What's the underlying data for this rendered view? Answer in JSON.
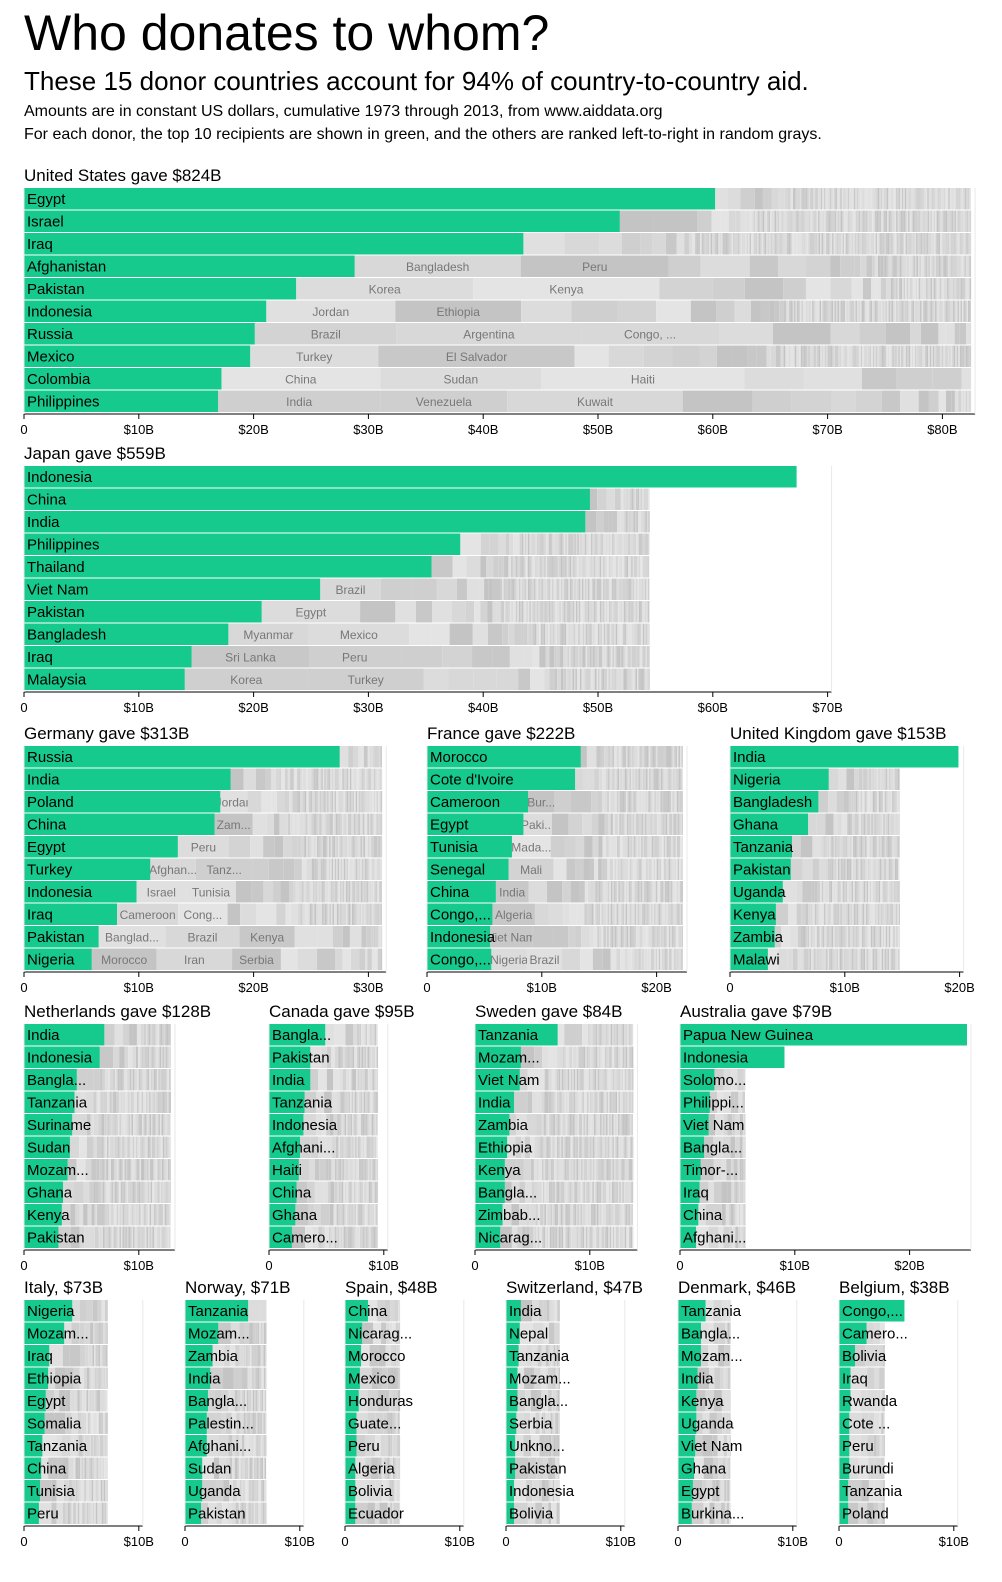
{
  "header": {
    "title": "Who donates to whom?",
    "subtitle": "These 15 donor countries account for 94% of country-to-country aid.",
    "note1": "Amounts are in constant US dollars, cumulative 1973 through 2013, from www.aiddata.org",
    "note2": "For each donor, the top 10 recipients are shown in green, and the others are ranked left-to-right in random grays."
  },
  "colors": {
    "green": "#16c98c",
    "grays": [
      "#d3d3d3",
      "#dcdcdc",
      "#c8c8c8",
      "#e4e4e4",
      "#cfcfcf",
      "#d8d8d8",
      "#c4c4c4",
      "#e0e0e0"
    ]
  },
  "chart_data": [
    {
      "type": "bar",
      "donor": "United States",
      "title": "United States gave $824B",
      "categories": [
        "Egypt",
        "Israel",
        "Iraq",
        "Afghanistan",
        "Pakistan",
        "Indonesia",
        "Russia",
        "Mexico",
        "Colombia",
        "Philippines"
      ],
      "values": [
        60.2,
        51.9,
        43.5,
        28.8,
        23.7,
        21.1,
        20.1,
        19.7,
        17.2,
        16.9
      ],
      "row_totals": [
        82.5,
        82.5,
        82.5,
        82.5,
        82.5,
        82.5,
        82.5,
        82.5,
        82.5,
        82.5
      ],
      "others": [
        [],
        [],
        [],
        [
          "Bangladesh",
          "Peru"
        ],
        [
          "Korea",
          "Kenya"
        ],
        [
          "Jordan",
          "Ethiopia"
        ],
        [
          "Brazil",
          "Argentina",
          "Congo, ..."
        ],
        [
          "Turkey",
          "El Salvador"
        ],
        [
          "China",
          "Sudan",
          "Haiti"
        ],
        [
          "India",
          "Venezuela",
          "Kuwait"
        ]
      ],
      "xticks": [
        0,
        10,
        20,
        30,
        40,
        50,
        60,
        70,
        80
      ],
      "xtick_labels": [
        "0",
        "$10B",
        "$20B",
        "$30B",
        "$40B",
        "$50B",
        "$60B",
        "$70B",
        "$80B"
      ]
    },
    {
      "type": "bar",
      "donor": "Japan",
      "title": "Japan gave $559B",
      "categories": [
        "Indonesia",
        "China",
        "India",
        "Philippines",
        "Thailand",
        "Viet Nam",
        "Pakistan",
        "Bangladesh",
        "Iraq",
        "Malaysia"
      ],
      "values": [
        67.3,
        49.3,
        48.9,
        38.0,
        35.5,
        25.8,
        20.7,
        17.8,
        14.6,
        14.0
      ],
      "row_totals": [
        67.3,
        54.5,
        54.5,
        54.5,
        54.5,
        54.5,
        54.5,
        54.5,
        54.5,
        54.5
      ],
      "others": [
        [],
        [],
        [],
        [],
        [],
        [
          "Brazil"
        ],
        [
          "Egypt"
        ],
        [
          "Myanmar",
          "Mexico"
        ],
        [
          "Sri Lanka",
          "Peru"
        ],
        [
          "Korea",
          "Turkey"
        ]
      ],
      "xticks": [
        0,
        10,
        20,
        30,
        40,
        50,
        60,
        70
      ],
      "xtick_labels": [
        "0",
        "$10B",
        "$20B",
        "$30B",
        "$40B",
        "$50B",
        "$60B",
        "$70B"
      ]
    },
    {
      "type": "bar",
      "donor": "Germany",
      "title": "Germany gave $313B",
      "categories": [
        "Russia",
        "India",
        "Poland",
        "China",
        "Egypt",
        "Turkey",
        "Indonesia",
        "Iraq",
        "Pakistan",
        "Nigeria"
      ],
      "values": [
        27.5,
        18.0,
        17.1,
        16.6,
        13.4,
        11.0,
        9.8,
        8.1,
        6.5,
        5.9
      ],
      "row_totals": [
        31.2,
        31.2,
        31.2,
        31.2,
        31.2,
        31.2,
        31.2,
        31.2,
        31.2,
        31.2
      ],
      "others": [
        [],
        [],
        [
          "Jordan"
        ],
        [
          "Zam..."
        ],
        [
          "Peru"
        ],
        [
          "Afghan...",
          "Tanz..."
        ],
        [
          "Israel",
          "Tunisia"
        ],
        [
          "Cameroon",
          "Cong..."
        ],
        [
          "Banglad...",
          "Brazil",
          "Kenya"
        ],
        [
          "Morocco",
          "Iran",
          "Serbia"
        ]
      ],
      "xticks": [
        0,
        10,
        20,
        30
      ],
      "xtick_labels": [
        "0",
        "$10B",
        "$20B",
        "$30B"
      ]
    },
    {
      "type": "bar",
      "donor": "France",
      "title": "France gave $222B",
      "categories": [
        "Morocco",
        "Cote d'Ivoire",
        "Cameroon",
        "Egypt",
        "Tunisia",
        "Senegal",
        "China",
        "Congo,...",
        "Indonesia",
        "Congo,..."
      ],
      "values": [
        13.4,
        12.9,
        8.8,
        8.4,
        7.4,
        7.1,
        6.0,
        5.7,
        5.5,
        5.6
      ],
      "row_totals": [
        22.3,
        22.3,
        22.3,
        22.3,
        22.3,
        22.3,
        22.3,
        22.3,
        22.3,
        22.3
      ],
      "others": [
        [],
        [],
        [
          "Bur..."
        ],
        [
          "Paki..."
        ],
        [
          "Mada..."
        ],
        [
          "Mali"
        ],
        [
          "India"
        ],
        [
          "Algeria"
        ],
        [
          "Viet Nam"
        ],
        [
          "Nigeria",
          "Brazil"
        ]
      ],
      "xticks": [
        0,
        10,
        20
      ],
      "xtick_labels": [
        "0",
        "$10B",
        "$20B"
      ]
    },
    {
      "type": "bar",
      "donor": "United Kingdom",
      "title": "United Kingdom gave $153B",
      "categories": [
        "India",
        "Nigeria",
        "Bangladesh",
        "Ghana",
        "Tanzania",
        "Pakistan",
        "Uganda",
        "Kenya",
        "Zambia",
        "Malawi"
      ],
      "values": [
        19.9,
        8.6,
        7.7,
        6.8,
        5.4,
        5.3,
        4.6,
        4.0,
        3.9,
        3.3
      ],
      "row_totals": [
        19.9,
        14.8,
        14.8,
        14.8,
        14.8,
        14.8,
        14.8,
        14.8,
        14.8,
        14.8
      ],
      "others": [
        [],
        [],
        [],
        [],
        [],
        [],
        [],
        [],
        [],
        []
      ],
      "xticks": [
        0,
        10,
        20
      ],
      "xtick_labels": [
        "0",
        "$10B",
        "$20B"
      ]
    },
    {
      "type": "bar",
      "donor": "Netherlands",
      "title": "Netherlands gave $128B",
      "categories": [
        "India",
        "Indonesia",
        "Bangla...",
        "Tanzania",
        "Suriname",
        "Sudan",
        "Mozam...",
        "Ghana",
        "Kenya",
        "Pakistan"
      ],
      "values": [
        7.0,
        6.6,
        4.6,
        4.4,
        4.2,
        4.0,
        3.8,
        3.4,
        3.3,
        3.0
      ],
      "row_totals": [
        12.8,
        12.8,
        12.8,
        12.8,
        12.8,
        12.8,
        12.8,
        12.8,
        12.8,
        12.8
      ],
      "others": [
        [],
        [],
        [],
        [],
        [],
        [],
        [],
        [],
        [],
        []
      ],
      "xticks": [
        0,
        10
      ],
      "xtick_labels": [
        "0",
        "$10B"
      ]
    },
    {
      "type": "bar",
      "donor": "Canada",
      "title": "Canada gave $95B",
      "categories": [
        "Bangla...",
        "Pakistan",
        "India",
        "Tanzania",
        "Indonesia",
        "Afghani...",
        "Haiti",
        "China",
        "Ghana",
        "Camero..."
      ],
      "values": [
        4.9,
        3.6,
        3.6,
        3.1,
        3.0,
        2.7,
        2.6,
        2.4,
        2.3,
        2.0
      ],
      "row_totals": [
        9.5,
        9.5,
        9.5,
        9.5,
        9.5,
        9.5,
        9.5,
        9.5,
        9.5,
        9.5
      ],
      "others": [
        [],
        [],
        [],
        [],
        [],
        [],
        [],
        [],
        [],
        []
      ],
      "xticks": [
        0,
        10
      ],
      "xtick_labels": [
        "0",
        "$10B"
      ]
    },
    {
      "type": "bar",
      "donor": "Sweden",
      "title": "Sweden gave $84B",
      "categories": [
        "Tanzania",
        "Mozam...",
        "Viet Nam",
        "India",
        "Zambia",
        "Ethiopia",
        "Kenya",
        "Bangla...",
        "Zimbab...",
        "Nicarag..."
      ],
      "values": [
        7.2,
        4.0,
        3.9,
        3.4,
        3.0,
        2.8,
        2.6,
        2.6,
        2.4,
        2.2
      ],
      "row_totals": [
        13.8,
        13.8,
        13.8,
        13.8,
        13.8,
        13.8,
        13.8,
        13.8,
        13.8,
        13.8
      ],
      "others": [
        [],
        [],
        [],
        [],
        [],
        [],
        [],
        [],
        [],
        []
      ],
      "xticks": [
        0,
        10
      ],
      "xtick_labels": [
        "0",
        "$10B"
      ]
    },
    {
      "type": "bar",
      "donor": "Australia",
      "title": "Australia gave $79B",
      "categories": [
        "Papua New Guinea",
        "Indonesia",
        "Solomo...",
        "Philippi...",
        "Viet Nam",
        "Bangla...",
        "Timor-...",
        "Iraq",
        "China",
        "Afghani..."
      ],
      "values": [
        25.0,
        9.1,
        3.0,
        2.6,
        2.5,
        2.1,
        1.8,
        1.7,
        1.6,
        1.4
      ],
      "row_totals": [
        25.0,
        9.1,
        5.7,
        5.7,
        5.7,
        5.7,
        5.7,
        5.7,
        5.7,
        5.7
      ],
      "others": [
        [],
        [],
        [],
        [],
        [],
        [],
        [],
        [],
        [],
        []
      ],
      "xticks": [
        0,
        10,
        20
      ],
      "xtick_labels": [
        "0",
        "$10B",
        "$20B"
      ]
    },
    {
      "type": "bar",
      "donor": "Italy",
      "title": "Italy, $73B",
      "categories": [
        "Nigeria",
        "Mozam...",
        "Iraq",
        "Ethiopia",
        "Egypt",
        "Somalia",
        "Tanzania",
        "China",
        "Tunisia",
        "Peru"
      ],
      "values": [
        4.2,
        3.5,
        2.2,
        2.1,
        1.9,
        1.8,
        1.6,
        1.5,
        1.4,
        1.3
      ],
      "row_totals": [
        7.3,
        7.3,
        7.3,
        7.3,
        7.3,
        7.3,
        7.3,
        7.3,
        7.3,
        7.3
      ],
      "others": [
        [],
        [],
        [],
        [],
        [],
        [],
        [],
        [],
        [],
        []
      ],
      "xticks": [
        0,
        10
      ],
      "xtick_labels": [
        "0",
        "$10B"
      ]
    },
    {
      "type": "bar",
      "donor": "Norway",
      "title": "Norway, $71B",
      "categories": [
        "Tanzania",
        "Mozam...",
        "Zambia",
        "India",
        "Bangla...",
        "Palestin...",
        "Afghani...",
        "Sudan",
        "Uganda",
        "Pakistan"
      ],
      "values": [
        5.5,
        2.9,
        2.4,
        2.2,
        2.0,
        1.9,
        1.9,
        1.5,
        1.5,
        1.4
      ],
      "row_totals": [
        7.1,
        7.1,
        7.1,
        7.1,
        7.1,
        7.1,
        7.1,
        7.1,
        7.1,
        7.1
      ],
      "others": [
        [],
        [],
        [],
        [],
        [],
        [],
        [],
        [],
        [],
        []
      ],
      "xticks": [
        0,
        10
      ],
      "xtick_labels": [
        "0",
        "$10B"
      ]
    },
    {
      "type": "bar",
      "donor": "Spain",
      "title": "Spain, $48B",
      "categories": [
        "China",
        "Nicarag...",
        "Morocco",
        "Mexico",
        "Honduras",
        "Guate...",
        "Peru",
        "Algeria",
        "Bolivia",
        "Ecuador"
      ],
      "values": [
        2.0,
        1.5,
        1.4,
        1.3,
        1.2,
        1.0,
        1.0,
        0.9,
        0.9,
        0.9
      ],
      "row_totals": [
        4.8,
        4.8,
        4.8,
        4.8,
        4.8,
        4.8,
        4.8,
        4.8,
        4.8,
        4.8
      ],
      "others": [
        [],
        [],
        [],
        [],
        [],
        [],
        [],
        [],
        [],
        []
      ],
      "xticks": [
        0,
        10
      ],
      "xtick_labels": [
        "0",
        "$10B"
      ]
    },
    {
      "type": "bar",
      "donor": "Switzerland",
      "title": "Switzerland, $47B",
      "categories": [
        "India",
        "Nepal",
        "Tanzania",
        "Mozam...",
        "Bangla...",
        "Serbia",
        "Unkno...",
        "Pakistan",
        "Indonesia",
        "Bolivia"
      ],
      "values": [
        1.3,
        1.2,
        1.1,
        1.0,
        1.0,
        0.9,
        0.8,
        0.8,
        0.7,
        0.7
      ],
      "row_totals": [
        4.7,
        4.7,
        4.7,
        4.7,
        4.7,
        4.7,
        4.7,
        4.7,
        4.7,
        4.7
      ],
      "others": [
        [],
        [],
        [],
        [],
        [],
        [],
        [],
        [],
        [],
        []
      ],
      "xticks": [
        0,
        10
      ],
      "xtick_labels": [
        "0",
        "$10B"
      ]
    },
    {
      "type": "bar",
      "donor": "Denmark",
      "title": "Denmark, $46B",
      "categories": [
        "Tanzania",
        "Bangla...",
        "Mozam...",
        "India",
        "Kenya",
        "Uganda",
        "Viet Nam",
        "Ghana",
        "Egypt",
        "Burkina..."
      ],
      "values": [
        2.4,
        2.0,
        2.0,
        1.7,
        1.6,
        1.6,
        1.5,
        1.4,
        1.3,
        1.2
      ],
      "row_totals": [
        4.6,
        4.6,
        4.6,
        4.6,
        4.6,
        4.6,
        4.6,
        4.6,
        4.6,
        4.6
      ],
      "others": [
        [],
        [],
        [],
        [],
        [],
        [],
        [],
        [],
        [],
        []
      ],
      "xticks": [
        0,
        10
      ],
      "xtick_labels": [
        "0",
        "$10B"
      ]
    },
    {
      "type": "bar",
      "donor": "Belgium",
      "title": "Belgium, $38B",
      "categories": [
        "Congo,...",
        "Camero...",
        "Bolivia",
        "Iraq",
        "Rwanda",
        "Cote ...",
        "Peru",
        "Burundi",
        "Tanzania",
        "Poland"
      ],
      "values": [
        5.7,
        2.4,
        1.4,
        1.0,
        1.0,
        0.9,
        0.9,
        0.9,
        0.8,
        0.8
      ],
      "row_totals": [
        5.7,
        4.0,
        4.0,
        4.0,
        4.0,
        4.0,
        4.0,
        4.0,
        4.0,
        4.0
      ],
      "others": [
        [],
        [],
        [],
        [],
        [],
        [],
        [],
        [],
        [],
        []
      ],
      "xticks": [
        0,
        10
      ],
      "xtick_labels": [
        "0",
        "$10B"
      ]
    }
  ]
}
